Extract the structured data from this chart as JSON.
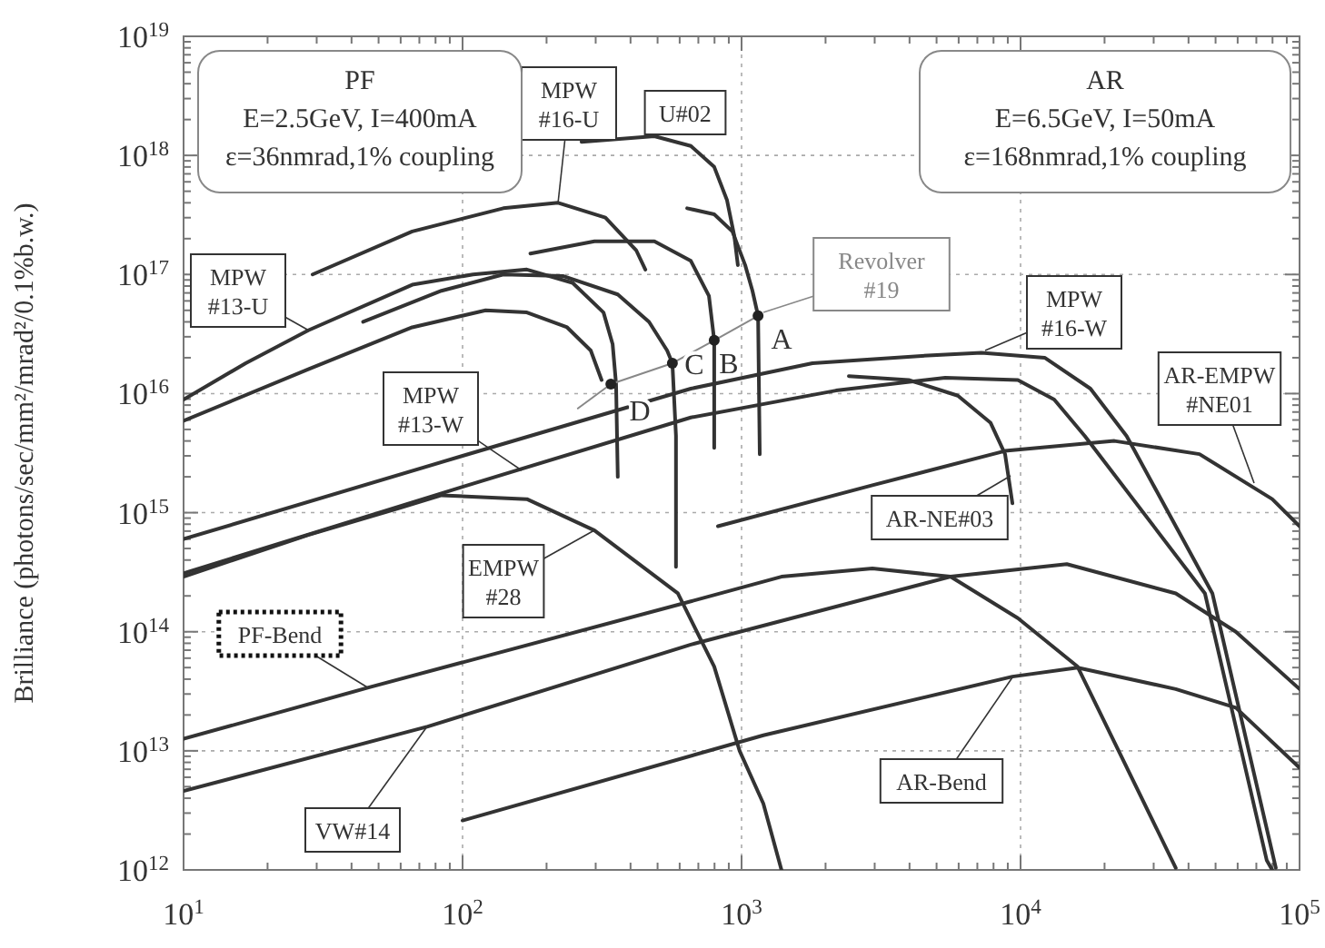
{
  "chart_data": {
    "type": "line",
    "ylabel": "Brilliance (photons/sec/mm²/mrad²/0.1%b.w.)",
    "log": "xy",
    "grid": true,
    "marker": "none",
    "xlim": [
      10,
      100000
    ],
    "ylim": [
      1000000000000.0,
      1e+19
    ],
    "xticks": [
      {
        "value": 10,
        "label": "10$^{1}$"
      },
      {
        "value": 20,
        "label": null
      },
      {
        "value": 30,
        "label": null
      },
      {
        "value": 40,
        "label": null
      },
      {
        "value": 50,
        "label": null
      },
      {
        "value": 60,
        "label": null
      },
      {
        "value": 70,
        "label": null
      },
      {
        "value": 80,
        "label": null
      },
      {
        "value": 90,
        "label": null
      },
      {
        "value": 100,
        "label": "10$^{2}$"
      },
      {
        "value": 200,
        "label": null
      },
      {
        "value": 300,
        "label": null
      },
      {
        "value": 400,
        "label": null
      },
      {
        "value": 500,
        "label": null
      },
      {
        "value": 600,
        "label": null
      },
      {
        "value": 700,
        "label": null
      },
      {
        "value": 800,
        "label": null
      },
      {
        "value": 900,
        "label": null
      },
      {
        "value": 1000,
        "label": "10$^{3}$"
      },
      {
        "value": 2000,
        "label": null
      },
      {
        "value": 3000,
        "label": null
      },
      {
        "value": 4000,
        "label": null
      },
      {
        "value": 5000,
        "label": null
      },
      {
        "value": 6000,
        "label": null
      },
      {
        "value": 7000,
        "label": null
      },
      {
        "value": 8000,
        "label": null
      },
      {
        "value": 9000,
        "label": null
      },
      {
        "value": 10000,
        "label": "10$^{4}$"
      },
      {
        "value": 20000,
        "label": null
      },
      {
        "value": 30000,
        "label": null
      },
      {
        "value": 40000,
        "label": null
      },
      {
        "value": 50000,
        "label": null
      },
      {
        "value": 60000,
        "label": null
      },
      {
        "value": 70000,
        "label": null
      },
      {
        "value": 80000,
        "label": null
      },
      {
        "value": 90000,
        "label": null
      },
      {
        "value": 100000,
        "label": "10$^{5}$"
      }
    ],
    "yticks": [
      {
        "value": 1000000000000.0,
        "label": "10$^{12}$"
      },
      {
        "value": 2000000000000.0,
        "label": null
      },
      {
        "value": 3000000000000.0,
        "label": null
      },
      {
        "value": 4000000000000.0,
        "label": null
      },
      {
        "value": 5000000000000.0,
        "label": null
      },
      {
        "value": 6000000000000.0,
        "label": null
      },
      {
        "value": 7000000000000.0,
        "label": null
      },
      {
        "value": 8000000000000.0,
        "label": null
      },
      {
        "value": 9000000000000.0,
        "label": null
      },
      {
        "value": 10000000000000.0,
        "label": "10$^{13}$"
      },
      {
        "value": 20000000000000.0,
        "label": null
      },
      {
        "value": 30000000000000.0,
        "label": null
      },
      {
        "value": 40000000000000.0,
        "label": null
      },
      {
        "value": 50000000000000.0,
        "label": null
      },
      {
        "value": 60000000000000.0,
        "label": null
      },
      {
        "value": 70000000000000.0,
        "label": null
      },
      {
        "value": 80000000000000.0,
        "label": null
      },
      {
        "value": 90000000000000.0,
        "label": null
      },
      {
        "value": 100000000000000.0,
        "label": "10$^{14}$"
      },
      {
        "value": 200000000000000.0,
        "label": null
      },
      {
        "value": 300000000000000.0,
        "label": null
      },
      {
        "value": 400000000000000.0,
        "label": null
      },
      {
        "value": 500000000000000.0,
        "label": null
      },
      {
        "value": 600000000000000.0,
        "label": null
      },
      {
        "value": 700000000000000.0,
        "label": null
      },
      {
        "value": 800000000000000.0,
        "label": null
      },
      {
        "value": 900000000000000.0,
        "label": null
      },
      {
        "value": 1000000000000000.0,
        "label": "10$^{15}$"
      },
      {
        "value": 2000000000000000.0,
        "label": null
      },
      {
        "value": 3000000000000000.0,
        "label": null
      },
      {
        "value": 4000000000000000.0,
        "label": null
      },
      {
        "value": 5000000000000000.0,
        "label": null
      },
      {
        "value": 6000000000000000.0,
        "label": null
      },
      {
        "value": 7000000000000000.0,
        "label": null
      },
      {
        "value": 8000000000000000.0,
        "label": null
      },
      {
        "value": 9000000000000000.0,
        "label": null
      },
      {
        "value": 1e+16,
        "label": "10$^{16}$"
      },
      {
        "value": 2e+16,
        "label": null
      },
      {
        "value": 3e+16,
        "label": null
      },
      {
        "value": 4e+16,
        "label": null
      },
      {
        "value": 5e+16,
        "label": null
      },
      {
        "value": 6e+16,
        "label": null
      },
      {
        "value": 7e+16,
        "label": null
      },
      {
        "value": 8e+16,
        "label": null
      },
      {
        "value": 9e+16,
        "label": null
      },
      {
        "value": 1e+17,
        "label": "10$^{17}$"
      },
      {
        "value": 2e+17,
        "label": null
      },
      {
        "value": 3e+17,
        "label": null
      },
      {
        "value": 4e+17,
        "label": null
      },
      {
        "value": 5e+17,
        "label": null
      },
      {
        "value": 6e+17,
        "label": null
      },
      {
        "value": 7e+17,
        "label": null
      },
      {
        "value": 8e+17,
        "label": null
      },
      {
        "value": 9e+17,
        "label": null
      },
      {
        "value": 1e+18,
        "label": "10$^{18}$"
      },
      {
        "value": 2e+18,
        "label": null
      },
      {
        "value": 3e+18,
        "label": null
      },
      {
        "value": 4e+18,
        "label": null
      },
      {
        "value": 5e+18,
        "label": null
      },
      {
        "value": 6e+18,
        "label": null
      },
      {
        "value": 7e+18,
        "label": null
      },
      {
        "value": 8e+18,
        "label": null
      },
      {
        "value": 9e+18,
        "label": null
      },
      {
        "value": 1e+19,
        "label": "10$^{19}$"
      }
    ],
    "annotations": [
      "PF\nE=2.5GeV, I=400mA\nε=36nmrad,1% coupling",
      "AR\nE=6.5GeV, I=50mA\nε=168nmrad,1% coupling",
      {
        "text": "A",
        "x": 1146,
        "y": 4.5e+16
      },
      {
        "text": "B",
        "x": 798,
        "y": 2.8e+16
      },
      {
        "text": "C",
        "x": 565,
        "y": 1.8e+16
      },
      {
        "text": "D",
        "x": 340,
        "y": 1.2e+16
      }
    ],
    "series": [
      {
        "name": "MPW #16-U",
        "color": "#333333",
        "x": [
          29,
          66,
          140,
          220,
          325,
          419,
          452
        ],
        "values": [
          1e+17,
          2.3e+17,
          3.6e+17,
          4e+17,
          3e+17,
          1.6e+17,
          1.1e+17
        ]
      },
      {
        "name": "U#02",
        "color": "#333333",
        "x": [
          267,
          487,
          658,
          798,
          887,
          942,
          970
        ],
        "values": [
          1.3e+18,
          1.45e+18,
          1.2e+18,
          8e+17,
          4.2e+17,
          2.1e+17,
          1.2e+17
        ]
      },
      {
        "name": "MPW #13-U",
        "color": "#333333",
        "x": [
          10,
          16.7,
          28,
          66,
          109,
          170,
          248,
          320,
          345,
          355,
          360
        ],
        "values": [
          8900000000000000.0,
          1.8e+16,
          3.4e+16,
          8.2e+16,
          1e+17,
          1.1e+17,
          8.5e+16,
          4.8e+16,
          2.6e+16,
          1.2e+16,
          2000000000000000.0
        ]
      },
      {
        "name": "Revolver #19",
        "color": "#888888",
        "x": [
          259,
          340,
          565,
          798,
          1146
        ],
        "values": [
          7500000000000000.0,
          1.2e+16,
          1.8e+16,
          2.8e+16,
          4.5e+16
        ]
      },
      {
        "name": "MPW #13-W",
        "color": "#333333",
        "x": [
          10,
          100,
          658,
          2180,
          5370,
          9780,
          13200,
          17000,
          45800,
          76300,
          79800
        ],
        "values": [
          310000000000000.0,
          1650000000000000.0,
          6300000000000000.0,
          1.06e+16,
          1.36e+16,
          1.3e+16,
          8900000000000000.0,
          4400000000000000.0,
          210000000000000.0,
          1200000000000.0,
          1000000000000.0
        ]
      },
      {
        "name": "MPW #16-W",
        "color": "#333333",
        "x": [
          10,
          100,
          658,
          1795,
          4830,
          7240,
          12200,
          17800,
          24000,
          48700,
          82200
        ],
        "values": [
          600000000000000.0,
          3000000000000000.0,
          1.1e+16,
          1.8e+16,
          2.1e+16,
          2.2e+16,
          2e+16,
          1.1e+16,
          4400000000000000.0,
          210000000000000.0,
          1040000000000.0
        ]
      },
      {
        "name": "EMPW #28",
        "color": "#333333",
        "x": [
          10,
          28,
          60,
          84,
          170,
          297,
          591,
          798,
          984,
          1197,
          1390
        ],
        "values": [
          290000000000000.0,
          650000000000000.0,
          1100000000000000.0,
          1400000000000000.0,
          1300000000000000.0,
          710000000000000.0,
          210000000000000.0,
          51000000000000.0,
          10000000000000.0,
          3600000000000.0,
          1000000000000.0
        ]
      },
      {
        "name": "PF-Bend",
        "color": "#333333",
        "x": [
          10,
          46,
          658,
          1390,
          2944,
          5610,
          9780,
          16000,
          36000
        ],
        "values": [
          12600000000000.0,
          34000000000000.0,
          180000000000000.0,
          290000000000000.0,
          340000000000000.0,
          290000000000000.0,
          130000000000000.0,
          51000000000000.0,
          1040000000000.0
        ]
      },
      {
        "name": "VW#14",
        "color": "#333333",
        "x": [
          10,
          75,
          658,
          5610,
          14650,
          36000,
          59100,
          100000
        ],
        "values": [
          4600000000000.0,
          16000000000000.0,
          78000000000000.0,
          290000000000000.0,
          370000000000000.0,
          210000000000000.0,
          100000000000000.0,
          33000000000000.0
        ]
      },
      {
        "name": "AR-Bend",
        "color": "#333333",
        "x": [
          100,
          1197,
          9350,
          16000,
          36000,
          59100,
          100000
        ],
        "values": [
          2600000000000.0,
          13500000000000.0,
          42000000000000.0,
          50000000000000.0,
          33000000000000.0,
          23000000000000.0,
          7200000000000.0
        ]
      },
      {
        "name": "AR-NE#03",
        "color": "#333333",
        "x": [
          2423,
          3972,
          5960,
          7800,
          8800,
          9350
        ],
        "values": [
          1.4e+16,
          1.3e+16,
          9600000000000000.0,
          5700000000000000.0,
          3100000000000000.0,
          1200000000000000.0
        ]
      },
      {
        "name": "AR-EMPW #NE01",
        "color": "#333333",
        "x": [
          823,
          2944,
          8800,
          21700,
          43800,
          79800,
          100000
        ],
        "values": [
          770000000000000.0,
          1700000000000000.0,
          3300000000000000.0,
          4000000000000000.0,
          3100000000000000.0,
          1300000000000000.0,
          770000000000000.0
        ]
      },
      {
        "color": "#333333",
        "x": [
          638,
          798,
          927,
          1030,
          1094,
          1146,
          1162
        ],
        "values": [
          3.6e+17,
          3.2e+17,
          2.3e+17,
          1.2e+17,
          7.3e+16,
          4.5e+16,
          3100000000000000.0
        ]
      },
      {
        "color": "#333333",
        "x": [
          175,
          297,
          487,
          658,
          764,
          798,
          798
        ],
        "values": [
          1.5e+17,
          1.9e+17,
          1.9e+17,
          1.3e+17,
          6.6e+16,
          2.8e+16,
          3500000000000000.0
        ]
      },
      {
        "color": "#333333",
        "x": [
          44,
          84,
          140,
          230,
          360,
          466,
          541,
          565,
          582,
          582
        ],
        "values": [
          4e+16,
          7.3e+16,
          1e+17,
          9.7e+16,
          6.8e+16,
          4e+16,
          2.3e+16,
          1.8e+16,
          4400000000000000.0,
          350000000000000.0
        ]
      },
      {
        "color": "#333333",
        "x": [
          10,
          28,
          66,
          121,
          170,
          237,
          288,
          315
        ],
        "values": [
          5900000000000000.0,
          1.6e+16,
          3.6e+16,
          5e+16,
          4.8e+16,
          3.6e+16,
          2.3e+16,
          1.3e+16
        ]
      },
      {
        "type": "scatter",
        "marker": "circle",
        "color": "#222222",
        "x": [
          340,
          565,
          798,
          1146
        ],
        "values": [
          1.2e+16,
          1.8e+16,
          2.8e+16,
          4.5e+16
        ]
      }
    ]
  }
}
